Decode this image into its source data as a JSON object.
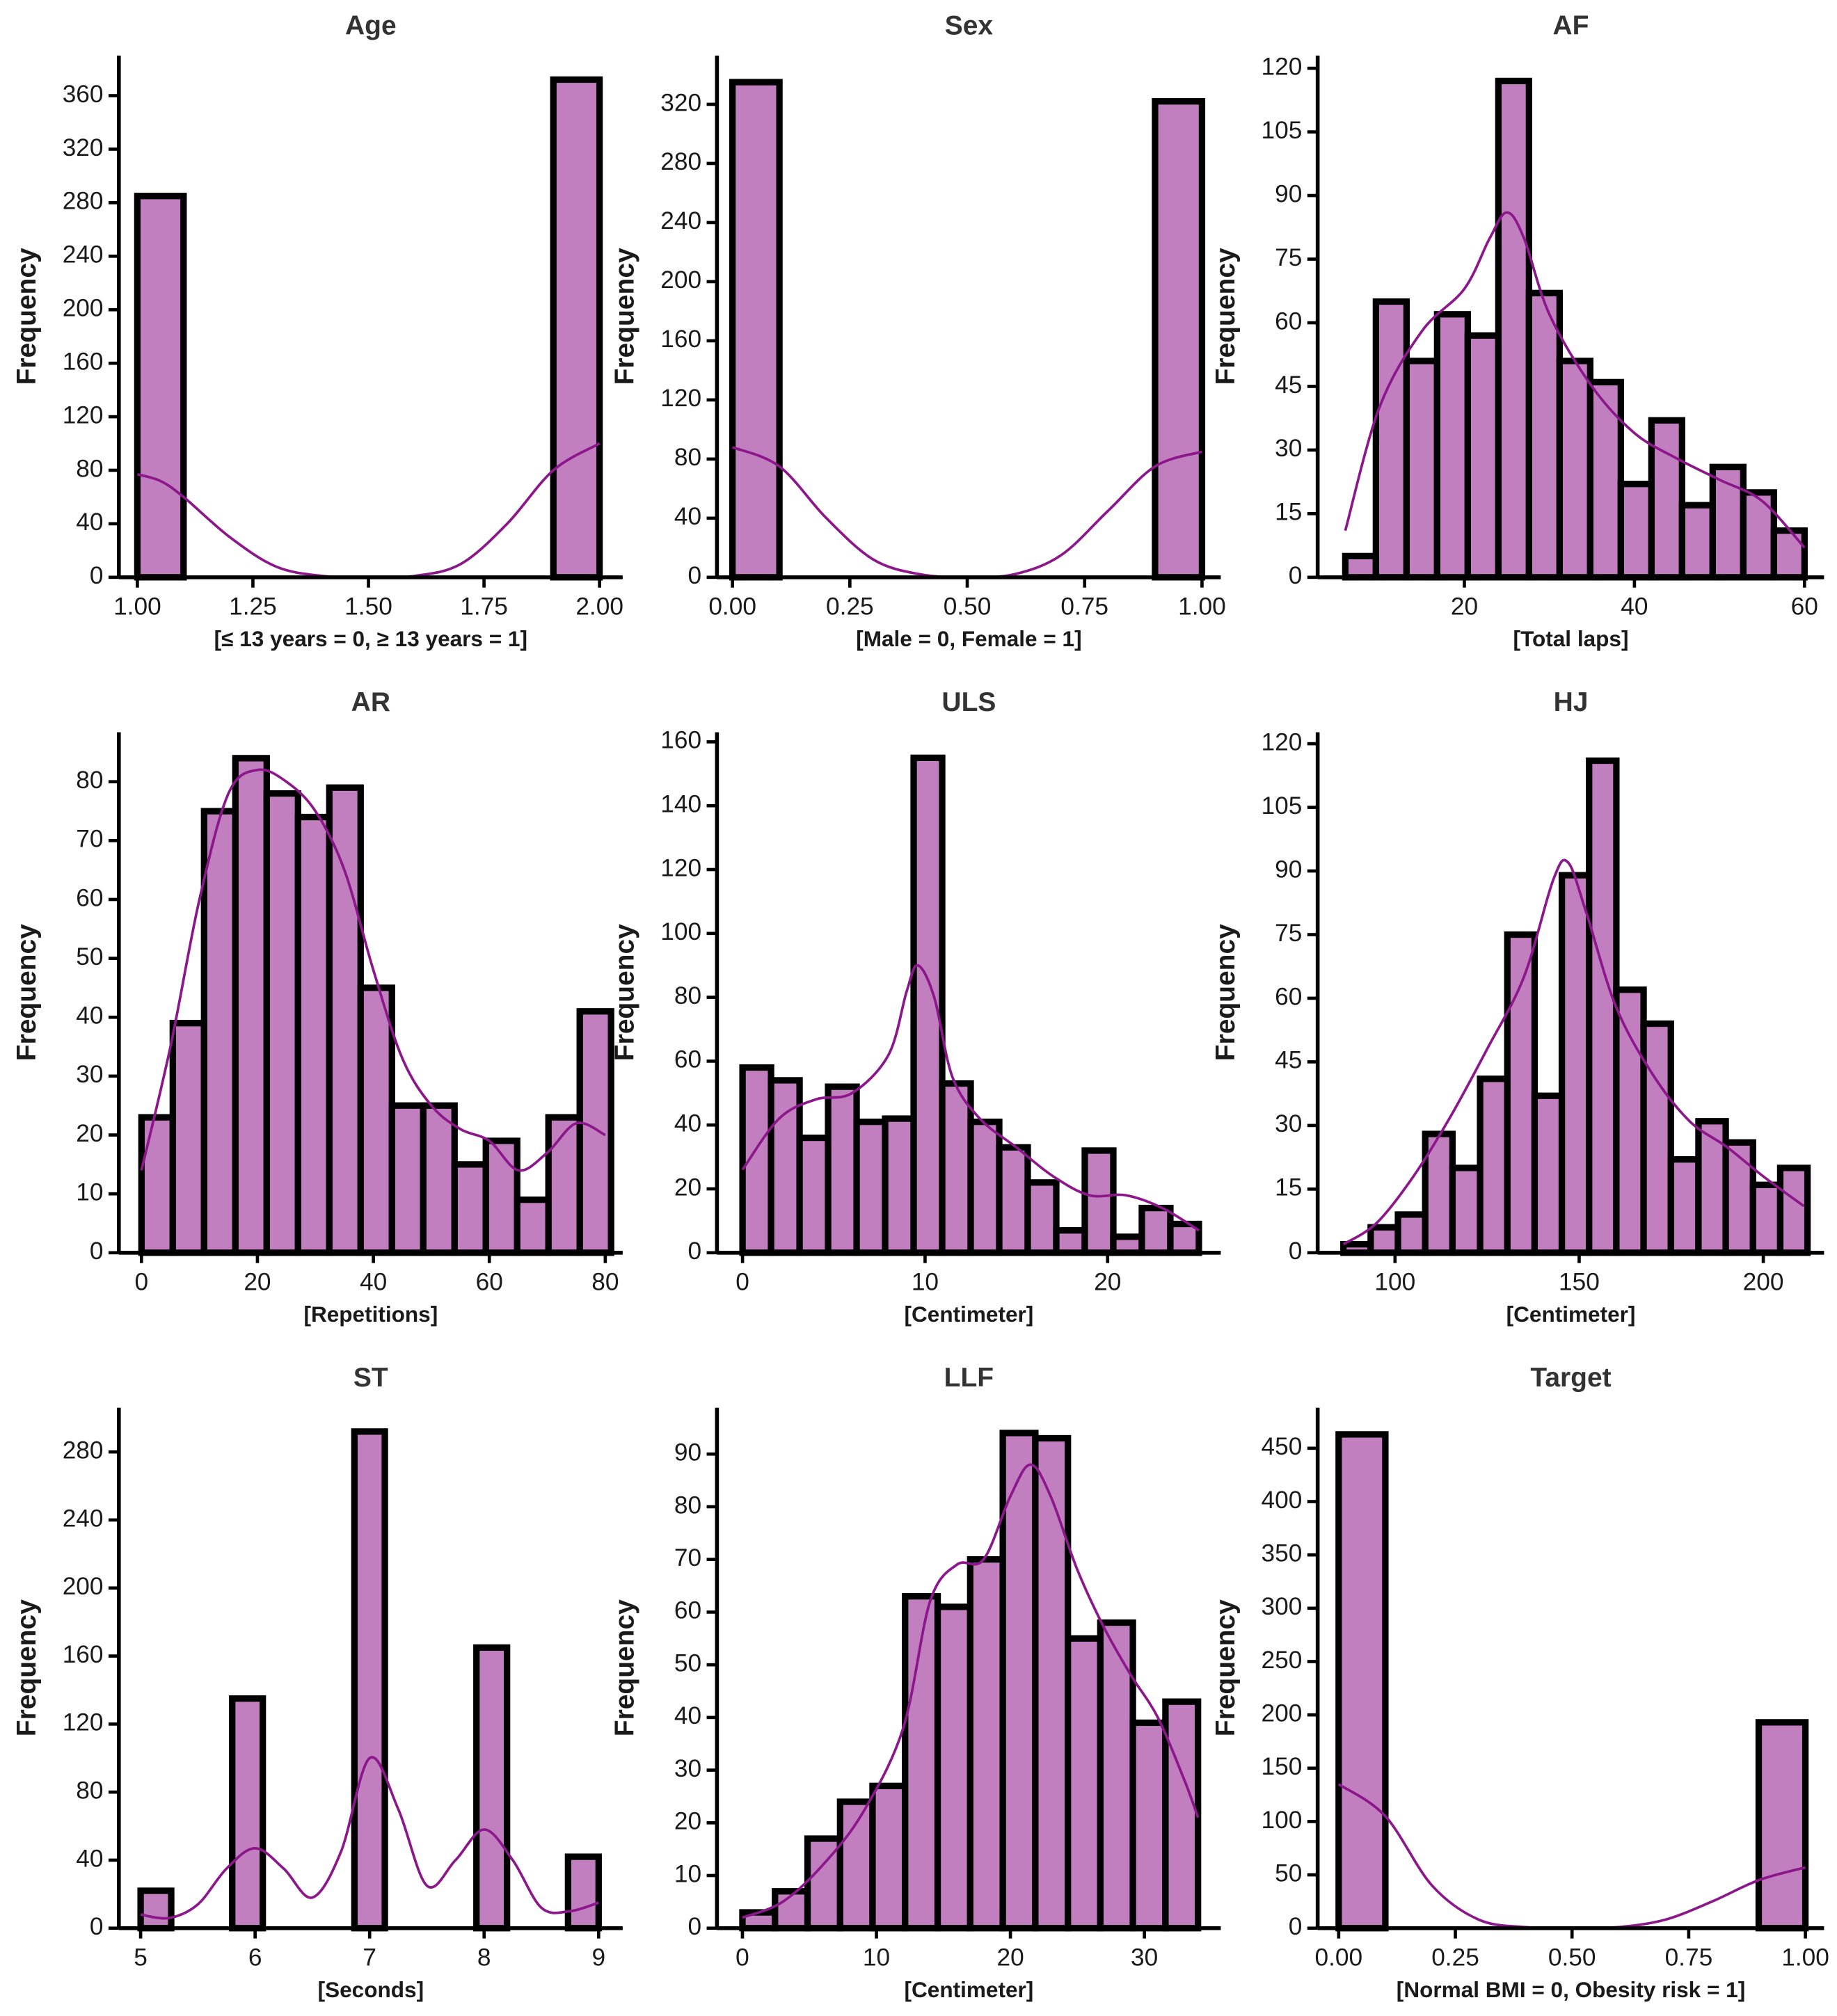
{
  "chart_data": [
    {
      "type": "histogram",
      "title": "Age",
      "xlabel": "[≤ 13 years = 0, ≥ 13 years = 1]",
      "ylabel": "Frequency",
      "bins": [
        1.0,
        1.1,
        1.2,
        1.3,
        1.4,
        1.5,
        1.6,
        1.7,
        1.8,
        1.9,
        2.0
      ],
      "counts": [
        285,
        0,
        0,
        0,
        0,
        0,
        0,
        0,
        0,
        372
      ],
      "kde": {
        "x": [
          1.0,
          1.05,
          1.1,
          1.2,
          1.3,
          1.4,
          1.5,
          1.6,
          1.7,
          1.8,
          1.9,
          2.0
        ],
        "values": [
          77,
          72,
          60,
          30,
          8,
          1,
          0,
          1,
          10,
          40,
          80,
          100
        ]
      },
      "xlim": [
        0.96,
        2.05
      ],
      "ylim": [
        0,
        390
      ],
      "xticks": [
        {
          "value": 1,
          "label": "1.00"
        },
        {
          "value": 1.25,
          "label": "1.25"
        },
        {
          "value": 1.5,
          "label": "1.50"
        },
        {
          "value": 1.75,
          "label": "1.75"
        },
        {
          "value": 2,
          "label": "2.00"
        }
      ],
      "yticks": [
        0,
        40,
        80,
        120,
        160,
        200,
        240,
        280,
        320,
        360
      ],
      "color": "#c27fbf",
      "kde_color": "#8b178b"
    },
    {
      "type": "histogram",
      "title": "Sex",
      "xlabel": "[Male = 0, Female = 1]",
      "ylabel": "Frequency",
      "bins": [
        0,
        0.1,
        0.2,
        0.3,
        0.4,
        0.5,
        0.6,
        0.7,
        0.8,
        0.9,
        1.0
      ],
      "counts": [
        335,
        0,
        0,
        0,
        0,
        0,
        0,
        0,
        0,
        322
      ],
      "kde": {
        "x": [
          0,
          0.1,
          0.2,
          0.3,
          0.4,
          0.5,
          0.6,
          0.7,
          0.8,
          0.9,
          1.0
        ],
        "values": [
          88,
          75,
          40,
          12,
          2,
          0,
          2,
          15,
          45,
          75,
          85
        ]
      },
      "xlim": [
        -0.033,
        1.04
      ],
      "ylim": [
        0,
        353
      ],
      "xticks": [
        {
          "value": 0,
          "label": "0.00"
        },
        {
          "value": 0.25,
          "label": "0.25"
        },
        {
          "value": 0.5,
          "label": "0.50"
        },
        {
          "value": 0.75,
          "label": "0.75"
        },
        {
          "value": 1,
          "label": "1.00"
        }
      ],
      "yticks": [
        0,
        40,
        80,
        120,
        160,
        200,
        240,
        280,
        320
      ],
      "color": "#c27fbf",
      "kde_color": "#8b178b"
    },
    {
      "type": "histogram",
      "title": "AF",
      "xlabel": "[Total laps]",
      "ylabel": "Frequency",
      "bins": [
        6,
        9.6,
        13.2,
        16.8,
        20.4,
        24,
        27.6,
        31.2,
        34.8,
        38.4,
        42,
        45.6,
        49.2,
        52.8,
        56.4,
        60
      ],
      "counts": [
        5,
        65,
        51,
        62,
        57,
        117,
        67,
        51,
        46,
        22,
        37,
        17,
        26,
        20,
        11
      ],
      "kde": {
        "x": [
          6,
          10,
          15,
          20,
          23,
          25,
          27,
          30,
          35,
          40,
          45,
          50,
          55,
          60
        ],
        "values": [
          11,
          40,
          58,
          68,
          80,
          86,
          80,
          62,
          45,
          34,
          28,
          23,
          18,
          7
        ]
      },
      "xlim": [
        2.75,
        62.3
      ],
      "ylim": [
        0,
        123
      ],
      "xticks": [
        20,
        40,
        60
      ],
      "yticks": [
        0,
        15,
        30,
        45,
        60,
        75,
        90,
        105,
        120
      ],
      "color": "#c27fbf",
      "kde_color": "#8b178b"
    },
    {
      "type": "histogram",
      "title": "AR",
      "xlabel": "[Repetitions]",
      "ylabel": "Frequency",
      "bins": [
        0,
        5.4,
        10.8,
        16.2,
        21.6,
        27,
        32.4,
        37.8,
        43.2,
        48.6,
        54,
        59.4,
        64.8,
        70.2,
        75.6,
        81
      ],
      "counts": [
        23,
        39,
        75,
        84,
        78,
        74,
        79,
        45,
        25,
        25,
        15,
        19,
        9,
        23,
        41
      ],
      "kde": {
        "x": [
          0,
          5,
          10,
          15,
          20,
          25,
          30,
          35,
          40,
          45,
          50,
          55,
          60,
          65,
          70,
          75,
          80
        ],
        "values": [
          14,
          35,
          60,
          78,
          82,
          80,
          75,
          65,
          48,
          33,
          25,
          21,
          19,
          14,
          17,
          22,
          20
        ]
      },
      "xlim": [
        -3.9,
        83
      ],
      "ylim": [
        0,
        88.4
      ],
      "xticks": [
        0,
        20,
        40,
        60,
        80
      ],
      "yticks": [
        0,
        10,
        20,
        30,
        40,
        50,
        60,
        70,
        80
      ],
      "color": "#c27fbf",
      "kde_color": "#8b178b"
    },
    {
      "type": "histogram",
      "title": "ULS",
      "xlabel": "[Centimeter]",
      "ylabel": "Frequency",
      "bins": [
        0,
        1.5625,
        3.125,
        4.6875,
        6.25,
        7.8125,
        9.375,
        10.9375,
        12.5,
        14.0625,
        15.625,
        17.1875,
        18.75,
        20.3125,
        21.875,
        23.4375,
        25
      ],
      "counts": [
        58,
        54,
        36,
        52,
        41,
        42,
        155,
        53,
        41,
        33,
        22,
        7,
        32,
        5,
        14,
        9
      ],
      "kde": {
        "x": [
          0,
          2,
          4,
          6,
          8,
          9,
          9.6,
          10.5,
          11.5,
          13,
          15,
          17,
          19,
          21,
          23,
          25
        ],
        "values": [
          26,
          42,
          48,
          50,
          62,
          82,
          90,
          80,
          55,
          42,
          33,
          24,
          18,
          18,
          14,
          7
        ]
      },
      "xlim": [
        -1.4,
        26.2
      ],
      "ylim": [
        0,
        163
      ],
      "xticks": [
        0,
        10,
        20
      ],
      "yticks": [
        0,
        20,
        40,
        60,
        80,
        100,
        120,
        140,
        160
      ],
      "color": "#c27fbf",
      "kde_color": "#8b178b"
    },
    {
      "type": "histogram",
      "title": "HJ",
      "xlabel": "[Centimeter]",
      "ylabel": "Frequency",
      "bins": [
        86,
        93.4,
        100.8,
        108.2,
        115.6,
        123.1,
        130.5,
        137.9,
        145.3,
        152.7,
        160.1,
        167.5,
        174.9,
        182.4,
        189.8,
        197.2,
        204.6,
        212
      ],
      "counts": [
        2,
        6,
        9,
        28,
        20,
        41,
        75,
        37,
        89,
        116,
        62,
        54,
        22,
        31,
        26,
        16,
        20
      ],
      "kde": {
        "x": [
          86,
          95,
          105,
          115,
          125,
          135,
          143,
          147,
          152,
          160,
          170,
          180,
          190,
          200,
          211
        ],
        "values": [
          2,
          7,
          18,
          32,
          48,
          65,
          88,
          92,
          80,
          58,
          42,
          31,
          25,
          18,
          11
        ]
      },
      "xlim": [
        79,
        216.5
      ],
      "ylim": [
        0,
        122.7
      ],
      "xticks": [
        100,
        150,
        200
      ],
      "yticks": [
        0,
        15,
        30,
        45,
        60,
        75,
        90,
        105,
        120
      ],
      "color": "#c27fbf",
      "kde_color": "#8b178b"
    },
    {
      "type": "histogram",
      "title": "ST",
      "xlabel": "[Seconds]",
      "ylabel": "Frequency",
      "bins": [
        5,
        5.267,
        5.533,
        5.8,
        6.067,
        6.333,
        6.6,
        6.867,
        7.133,
        7.4,
        7.667,
        7.933,
        8.2,
        8.467,
        8.733,
        9
      ],
      "counts": [
        22,
        0,
        0,
        135,
        0,
        0,
        0,
        292,
        0,
        0,
        0,
        165,
        0,
        0,
        42
      ],
      "kde": {
        "x": [
          5,
          5.25,
          5.5,
          5.75,
          6,
          6.25,
          6.5,
          6.75,
          7,
          7.25,
          7.5,
          7.75,
          8,
          8.25,
          8.5,
          8.75,
          9
        ],
        "values": [
          8,
          6,
          14,
          35,
          47,
          35,
          18,
          45,
          100,
          70,
          25,
          40,
          58,
          40,
          12,
          10,
          15
        ]
      },
      "xlim": [
        4.81,
        9.21
      ],
      "ylim": [
        0,
        306
      ],
      "xticks": [
        5,
        6,
        7,
        8,
        9
      ],
      "yticks": [
        0,
        40,
        80,
        120,
        160,
        200,
        240,
        280
      ],
      "color": "#c27fbf",
      "kde_color": "#8b178b"
    },
    {
      "type": "histogram",
      "title": "LLF",
      "xlabel": "[Centimeter]",
      "ylabel": "Frequency",
      "bins": [
        0,
        2.43,
        4.86,
        7.29,
        9.71,
        12.14,
        14.57,
        17,
        19.43,
        21.86,
        24.29,
        26.71,
        29.14,
        31.57,
        34
      ],
      "counts": [
        3,
        7,
        17,
        24,
        27,
        63,
        61,
        70,
        94,
        93,
        55,
        58,
        39,
        43
      ],
      "kde": {
        "x": [
          0,
          3,
          6,
          9,
          12,
          14,
          16,
          18,
          20,
          21.5,
          23,
          25,
          27,
          29,
          31,
          33,
          34
        ],
        "values": [
          2,
          5,
          12,
          22,
          38,
          62,
          69,
          70,
          82,
          88,
          82,
          68,
          57,
          48,
          40,
          28,
          21
        ]
      },
      "xlim": [
        -1.9,
        35.7
      ],
      "ylim": [
        0,
        98.8
      ],
      "xticks": [
        0,
        10,
        20,
        30
      ],
      "yticks": [
        0,
        10,
        20,
        30,
        40,
        50,
        60,
        70,
        80,
        90
      ],
      "color": "#c27fbf",
      "kde_color": "#8b178b"
    },
    {
      "type": "histogram",
      "title": "Target",
      "xlabel": "[Normal BMI = 0, Obesity risk = 1]",
      "ylabel": "Frequency",
      "bins": [
        0,
        0.1,
        0.2,
        0.3,
        0.4,
        0.5,
        0.6,
        0.7,
        0.8,
        0.9,
        1.0
      ],
      "counts": [
        463,
        0,
        0,
        0,
        0,
        0,
        0,
        0,
        0,
        193
      ],
      "kde": {
        "x": [
          0,
          0.1,
          0.2,
          0.3,
          0.4,
          0.5,
          0.6,
          0.7,
          0.8,
          0.9,
          1.0
        ],
        "values": [
          135,
          105,
          40,
          8,
          1,
          0,
          1,
          8,
          25,
          45,
          57
        ]
      },
      "xlim": [
        -0.045,
        1.04
      ],
      "ylim": [
        0,
        488
      ],
      "xticks": [
        {
          "value": 0,
          "label": "0.00"
        },
        {
          "value": 0.25,
          "label": "0.25"
        },
        {
          "value": 0.5,
          "label": "0.50"
        },
        {
          "value": 0.75,
          "label": "0.75"
        },
        {
          "value": 1,
          "label": "1.00"
        }
      ],
      "yticks": [
        0,
        50,
        100,
        150,
        200,
        250,
        300,
        350,
        400,
        450
      ],
      "color": "#c27fbf",
      "kde_color": "#8b178b"
    }
  ]
}
